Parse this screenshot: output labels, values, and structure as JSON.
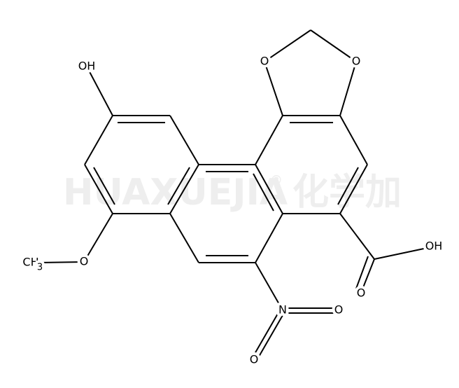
{
  "watermark": "HUAXUEJIA",
  "watermark_mark": "®",
  "watermark_cn": "化学加",
  "atoms": [
    {
      "label": "OH"
    },
    {
      "label": "O"
    },
    {
      "label": "O"
    },
    {
      "label": "OH"
    },
    {
      "label": "O"
    },
    {
      "label": "O"
    },
    {
      "label": "N"
    },
    {
      "label": "O"
    },
    {
      "label": "O"
    },
    {
      "label": "CH",
      "subscript": "3"
    }
  ]
}
